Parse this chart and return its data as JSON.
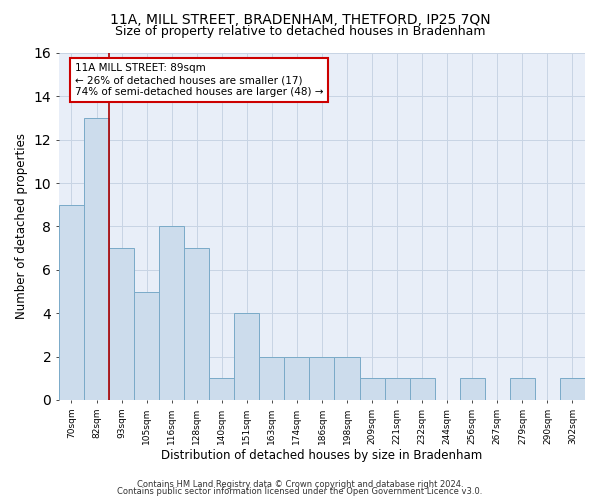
{
  "title": "11A, MILL STREET, BRADENHAM, THETFORD, IP25 7QN",
  "subtitle": "Size of property relative to detached houses in Bradenham",
  "xlabel": "Distribution of detached houses by size in Bradenham",
  "ylabel": "Number of detached properties",
  "categories": [
    "70sqm",
    "82sqm",
    "93sqm",
    "105sqm",
    "116sqm",
    "128sqm",
    "140sqm",
    "151sqm",
    "163sqm",
    "174sqm",
    "186sqm",
    "198sqm",
    "209sqm",
    "221sqm",
    "232sqm",
    "244sqm",
    "256sqm",
    "267sqm",
    "279sqm",
    "290sqm",
    "302sqm"
  ],
  "values": [
    9,
    13,
    7,
    5,
    8,
    7,
    1,
    4,
    2,
    2,
    2,
    2,
    1,
    1,
    1,
    0,
    1,
    0,
    1,
    0,
    1
  ],
  "bar_color": "#ccdcec",
  "bar_edgecolor": "#7aaac8",
  "vline_x": 1,
  "vline_color": "#aa0000",
  "annotation_line1": "11A MILL STREET: 89sqm",
  "annotation_line2": "← 26% of detached houses are smaller (17)",
  "annotation_line3": "74% of semi-detached houses are larger (48) →",
  "annotation_box_color": "#cc0000",
  "ylim": [
    0,
    16
  ],
  "yticks": [
    0,
    2,
    4,
    6,
    8,
    10,
    12,
    14,
    16
  ],
  "grid_color": "#c8d4e4",
  "background_color": "#e8eef8",
  "footer1": "Contains HM Land Registry data © Crown copyright and database right 2024.",
  "footer2": "Contains public sector information licensed under the Open Government Licence v3.0.",
  "title_fontsize": 10,
  "subtitle_fontsize": 9,
  "xlabel_fontsize": 8.5,
  "ylabel_fontsize": 8.5,
  "annotation_fontsize": 7.5,
  "footer_fontsize": 6
}
